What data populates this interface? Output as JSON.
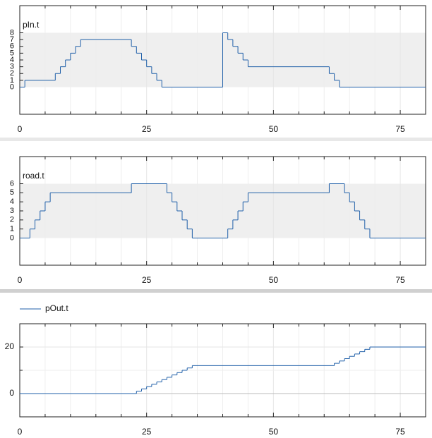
{
  "chart_data": [
    {
      "type": "step",
      "legend": "inside-top-left",
      "band": [
        0,
        8
      ],
      "grid": true,
      "xlim": [
        0,
        80
      ],
      "xticks": [
        0,
        25,
        50,
        75
      ],
      "minor_xticks": [
        5,
        10,
        15,
        20,
        30,
        35,
        40,
        45,
        55,
        60,
        65,
        70,
        80
      ],
      "ylim": [
        -4,
        12
      ],
      "yticks": [
        0,
        1,
        2,
        3,
        4,
        5,
        6,
        7,
        8
      ],
      "x": [
        0,
        1,
        7,
        8,
        9,
        10,
        11,
        12,
        22,
        23,
        24,
        25,
        26,
        27,
        28,
        40,
        41,
        42,
        43,
        44,
        45,
        61,
        62,
        63
      ],
      "series": [
        {
          "name": "pIn.t",
          "color": "#1f5fa8",
          "values": [
            0,
            1,
            2,
            3,
            4,
            5,
            6,
            7,
            6,
            5,
            4,
            3,
            2,
            1,
            0,
            8,
            7,
            6,
            5,
            4,
            3,
            2,
            1,
            0
          ]
        }
      ]
    },
    {
      "type": "step",
      "legend": "inside-top-left",
      "band": [
        0,
        6
      ],
      "grid": true,
      "xlim": [
        0,
        80
      ],
      "xticks": [
        0,
        25,
        50,
        75
      ],
      "minor_xticks": [
        5,
        10,
        15,
        20,
        30,
        35,
        40,
        45,
        55,
        60,
        65,
        70,
        80
      ],
      "ylim": [
        -3,
        9
      ],
      "yticks": [
        0,
        1,
        2,
        3,
        4,
        5,
        6
      ],
      "x": [
        0,
        2,
        3,
        4,
        5,
        6,
        22,
        29,
        30,
        31,
        32,
        33,
        34,
        41,
        42,
        43,
        44,
        45,
        61,
        64,
        65,
        66,
        67,
        68,
        69
      ],
      "series": [
        {
          "name": "road.t",
          "color": "#1f5fa8",
          "values": [
            0,
            1,
            2,
            3,
            4,
            5,
            6,
            5,
            4,
            3,
            2,
            1,
            0,
            1,
            2,
            3,
            4,
            5,
            6,
            5,
            4,
            3,
            2,
            1,
            0
          ]
        }
      ]
    },
    {
      "type": "step",
      "legend": "above-left",
      "grid": true,
      "zero_line": true,
      "xlim": [
        0,
        80
      ],
      "xticks": [
        0,
        25,
        50,
        75
      ],
      "minor_xticks": [
        5,
        10,
        15,
        20,
        30,
        35,
        40,
        45,
        55,
        60,
        65,
        70,
        80
      ],
      "ylim": [
        -10,
        30
      ],
      "yticks": [
        0,
        20
      ],
      "minor_yticks": [
        -10,
        10
      ],
      "x": [
        0,
        23,
        24,
        25,
        26,
        27,
        28,
        29,
        30,
        31,
        32,
        33,
        34,
        62,
        63,
        64,
        65,
        66,
        67,
        68,
        69
      ],
      "series": [
        {
          "name": "pOut.t",
          "color": "#1f5fa8",
          "values": [
            0,
            1,
            2,
            3,
            4,
            5,
            6,
            7,
            8,
            9,
            10,
            11,
            12,
            13,
            14,
            15,
            16,
            17,
            18,
            19,
            20
          ]
        }
      ]
    }
  ]
}
